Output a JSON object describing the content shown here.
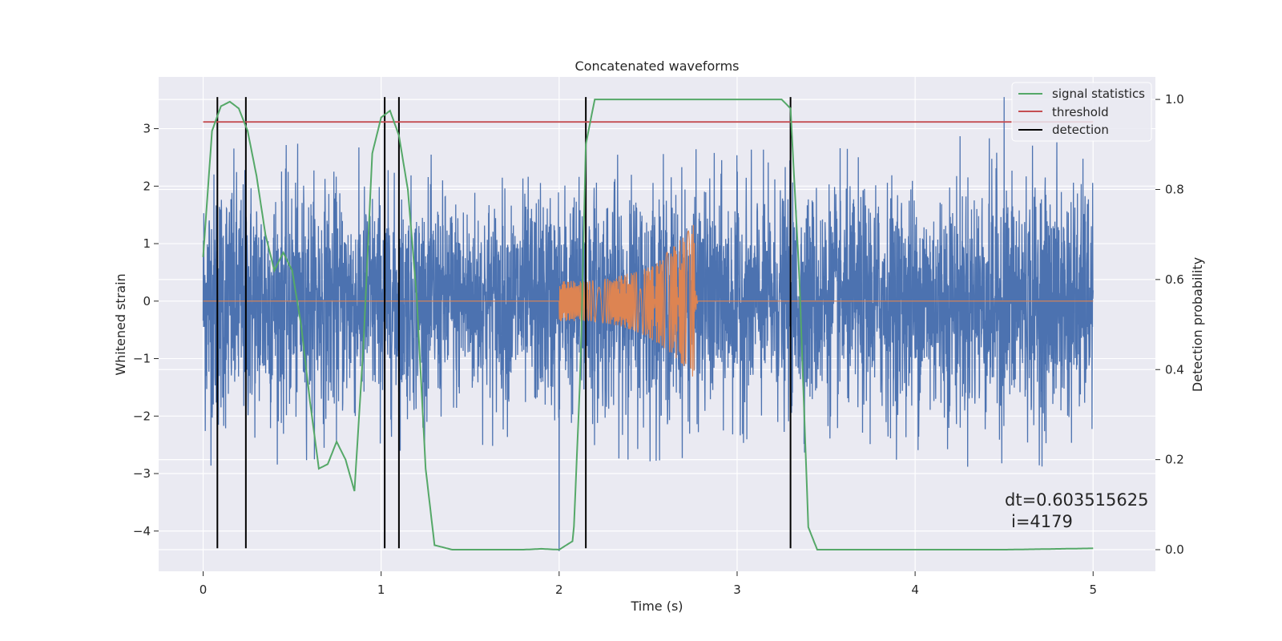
{
  "chart_data": {
    "type": "line",
    "title": "Concatenated waveforms",
    "xlabel": "Time (s)",
    "ylabel": "Whitened strain",
    "y2label": "Detection probability",
    "xlim": [
      -0.25,
      5.35
    ],
    "ylim": [
      -4.7,
      3.9
    ],
    "y2lim": [
      -0.048,
      1.05
    ],
    "xticks": [
      0,
      1,
      2,
      3,
      4,
      5
    ],
    "xtick_labels": [
      "0",
      "1",
      "2",
      "3",
      "4",
      "5"
    ],
    "yticks": [
      -4,
      -3,
      -2,
      -1,
      0,
      1,
      2,
      3
    ],
    "ytick_labels": [
      "−4",
      "−3",
      "−2",
      "−1",
      "0",
      "1",
      "2",
      "3"
    ],
    "y2ticks": [
      0.0,
      0.2,
      0.4,
      0.6,
      0.8,
      1.0
    ],
    "y2tick_labels": [
      "0.0",
      "0.2",
      "0.4",
      "0.6",
      "0.8",
      "1.0"
    ],
    "grid": true,
    "legend_position": "top-right",
    "colors": {
      "strain": "#4c72b0",
      "injection": "#dd8452",
      "statistics": "#55a868",
      "threshold": "#c44e52",
      "detection": "#000000",
      "plot_bg": "#eaeaf2",
      "grid": "#ffffff"
    },
    "series": [
      {
        "name": "signal statistics",
        "axis": "right",
        "x": [
          0.0,
          0.05,
          0.1,
          0.15,
          0.2,
          0.25,
          0.3,
          0.35,
          0.4,
          0.45,
          0.5,
          0.55,
          0.6,
          0.65,
          0.7,
          0.75,
          0.8,
          0.85,
          0.9,
          0.95,
          1.0,
          1.05,
          1.1,
          1.15,
          1.2,
          1.25,
          1.3,
          1.4,
          1.6,
          1.8,
          1.9,
          2.0,
          2.08,
          2.12,
          2.15,
          2.2,
          2.5,
          3.0,
          3.25,
          3.3,
          3.35,
          3.4,
          3.45,
          3.6,
          4.0,
          4.5,
          5.0
        ],
        "values": [
          0.65,
          0.93,
          0.985,
          0.995,
          0.98,
          0.93,
          0.83,
          0.7,
          0.62,
          0.66,
          0.62,
          0.5,
          0.33,
          0.18,
          0.19,
          0.24,
          0.2,
          0.13,
          0.45,
          0.88,
          0.96,
          0.975,
          0.92,
          0.8,
          0.56,
          0.18,
          0.01,
          0.0,
          0.0,
          0.0,
          0.002,
          0.0,
          0.02,
          0.4,
          0.9,
          1.0,
          1.0,
          1.0,
          1.0,
          0.98,
          0.6,
          0.05,
          0.0,
          0.0,
          0.0,
          0.0,
          0.003
        ]
      },
      {
        "name": "threshold",
        "axis": "right",
        "x": [
          0.0,
          5.0
        ],
        "values": [
          0.95,
          0.95
        ]
      },
      {
        "name": "detection",
        "axis": "left",
        "vlines_x": [
          0.08,
          0.24,
          1.02,
          1.1,
          2.15,
          3.3
        ],
        "ymin": -4.3,
        "ymax": 3.55
      },
      {
        "axis": "left",
        "x_range": [
          0.0,
          5.0
        ],
        "envelope_x": [
          0.0,
          0.5,
          1.0,
          1.5,
          2.0,
          2.5,
          3.0,
          3.5,
          4.0,
          4.5,
          5.0
        ],
        "envelope_amplitude": [
          2.0,
          1.8,
          1.7,
          1.6,
          1.7,
          1.8,
          1.7,
          1.7,
          1.8,
          1.9,
          1.8
        ],
        "peak_max": 3.55,
        "peak_min": -4.35
      },
      {
        "axis": "left",
        "x_range": [
          0.0,
          5.0
        ],
        "chirp_start": 2.0,
        "chirp_end": 2.76,
        "amplitude_start": 0.35,
        "amplitude_end": 1.35
      }
    ],
    "annotation": {
      "line1": "dt=0.603515625",
      "line2": "i=4179"
    }
  }
}
